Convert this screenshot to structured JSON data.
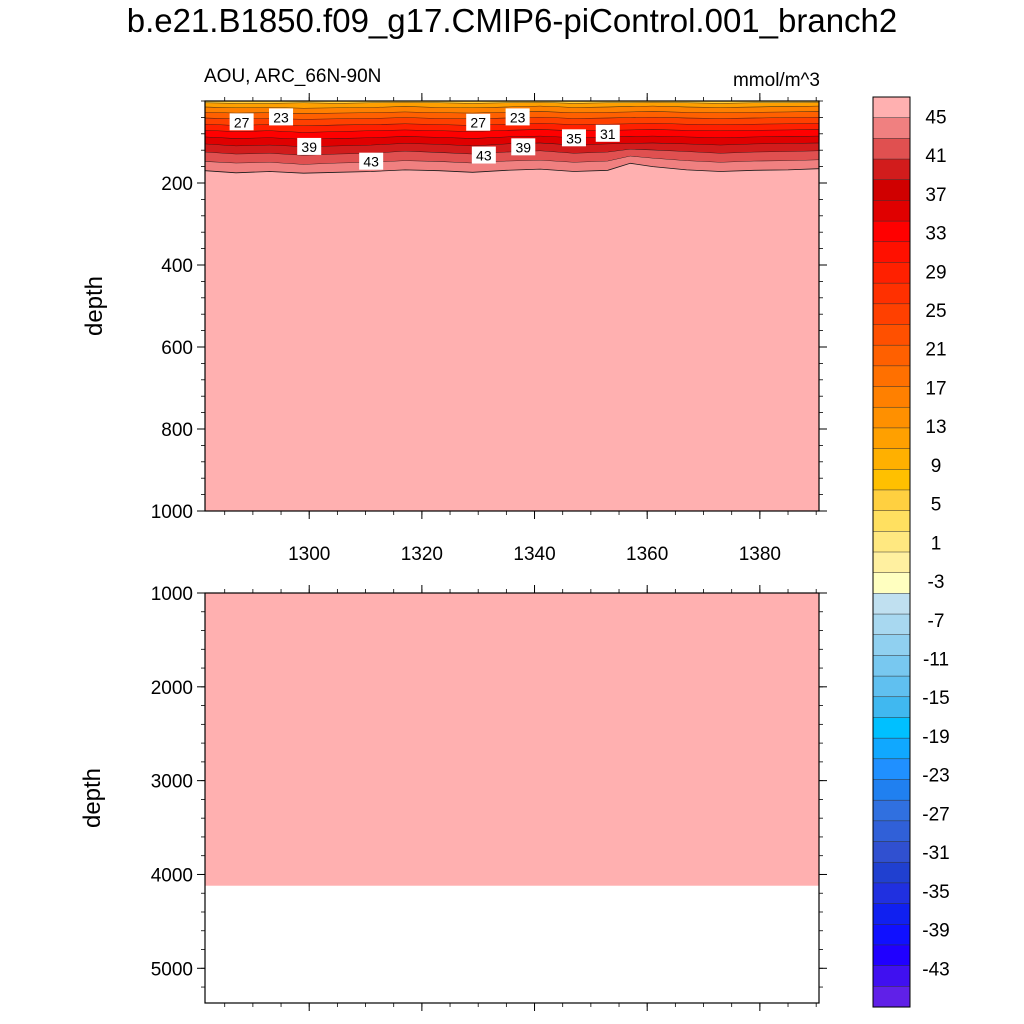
{
  "title": "b.e21.B1850.f09_g17.CMIP6-piControl.001_branch2",
  "left_string": "AOU, ARC_66N-90N",
  "right_string": "mmol/m^3",
  "colors": {
    "background_fill": "#ffb0b0",
    "contour_line": "#1a1a1a",
    "frame": "#000000"
  },
  "chart_data": [
    {
      "type": "heatmap",
      "subtype": "filled-contour",
      "ylabel": "depth",
      "xlim": [
        1281.5,
        1390.5
      ],
      "ylim": [
        1000,
        0
      ],
      "x_ticks": [
        1300,
        1320,
        1340,
        1360,
        1380
      ],
      "y_ticks": [
        200,
        400,
        600,
        800,
        1000
      ],
      "fill_below_contours": 47,
      "contour_bands": [
        {
          "level": 9,
          "top": [
            0,
            0,
            0,
            0,
            0,
            0,
            0,
            0,
            0,
            0,
            0,
            0,
            0,
            0,
            0,
            0,
            0,
            0,
            0,
            0
          ],
          "bottom": [
            5,
            6,
            6,
            5,
            6,
            5,
            4,
            5,
            6,
            5,
            4,
            6,
            5,
            5,
            4,
            5,
            6,
            5,
            5,
            4
          ],
          "color": "#ffd040"
        },
        {
          "level": 13,
          "top": [
            5,
            6,
            6,
            5,
            6,
            5,
            4,
            5,
            6,
            5,
            4,
            6,
            5,
            5,
            4,
            5,
            6,
            5,
            5,
            4
          ],
          "bottom": [
            15,
            17,
            16,
            18,
            17,
            16,
            14,
            16,
            17,
            15,
            13,
            16,
            15,
            14,
            13,
            15,
            16,
            15,
            14,
            13
          ],
          "color": "#ffa000"
        },
        {
          "level": 17,
          "top": [
            15,
            17,
            16,
            18,
            17,
            16,
            14,
            16,
            17,
            15,
            13,
            16,
            15,
            14,
            13,
            15,
            16,
            15,
            14,
            13
          ],
          "bottom": [
            28,
            30,
            29,
            31,
            30,
            29,
            27,
            29,
            30,
            28,
            26,
            29,
            28,
            27,
            26,
            28,
            29,
            28,
            27,
            26
          ],
          "color": "#ff8000"
        },
        {
          "level": 21,
          "top": [
            28,
            30,
            29,
            31,
            30,
            29,
            27,
            29,
            30,
            28,
            26,
            29,
            28,
            27,
            26,
            28,
            29,
            28,
            27,
            26
          ],
          "bottom": [
            42,
            44,
            43,
            45,
            44,
            43,
            41,
            43,
            44,
            42,
            40,
            43,
            42,
            41,
            40,
            42,
            43,
            42,
            41,
            40
          ],
          "color": "#ff6000"
        },
        {
          "level": 25,
          "top": [
            42,
            44,
            43,
            45,
            44,
            43,
            41,
            43,
            44,
            42,
            40,
            43,
            42,
            41,
            40,
            42,
            43,
            42,
            41,
            40
          ],
          "bottom": [
            57,
            60,
            58,
            61,
            59,
            58,
            56,
            58,
            60,
            57,
            55,
            58,
            57,
            56,
            55,
            57,
            58,
            57,
            56,
            55
          ],
          "color": "#ff4000"
        },
        {
          "level": 29,
          "top": [
            57,
            60,
            58,
            61,
            59,
            58,
            56,
            58,
            60,
            57,
            55,
            58,
            57,
            56,
            55,
            57,
            58,
            57,
            56,
            55
          ],
          "bottom": [
            72,
            75,
            73,
            77,
            75,
            73,
            71,
            73,
            75,
            72,
            70,
            73,
            72,
            71,
            70,
            72,
            73,
            72,
            71,
            70
          ],
          "color": "#ff2000"
        },
        {
          "level": 33,
          "top": [
            72,
            75,
            73,
            77,
            75,
            73,
            71,
            73,
            75,
            72,
            70,
            73,
            72,
            71,
            70,
            72,
            73,
            72,
            71,
            70
          ],
          "bottom": [
            88,
            92,
            90,
            94,
            92,
            90,
            87,
            89,
            92,
            88,
            86,
            90,
            88,
            87,
            86,
            88,
            90,
            88,
            87,
            86
          ],
          "color": "#ff0000"
        },
        {
          "level": 37,
          "top": [
            88,
            92,
            90,
            94,
            92,
            90,
            87,
            89,
            92,
            88,
            86,
            90,
            88,
            87,
            86,
            88,
            90,
            88,
            87,
            86
          ],
          "bottom": [
            105,
            110,
            108,
            112,
            110,
            108,
            104,
            106,
            110,
            105,
            103,
            108,
            105,
            104,
            103,
            105,
            108,
            105,
            104,
            103
          ],
          "color": "#e00000"
        },
        {
          "level": 41,
          "top": [
            105,
            110,
            108,
            112,
            110,
            108,
            104,
            106,
            110,
            105,
            103,
            108,
            105,
            104,
            103,
            105,
            108,
            105,
            104,
            103
          ],
          "bottom": [
            125,
            130,
            128,
            133,
            130,
            128,
            123,
            126,
            130,
            125,
            122,
            128,
            125,
            118,
            120,
            124,
            128,
            125,
            124,
            122
          ],
          "color": "#d21c1c"
        },
        {
          "level": 43,
          "top": [
            125,
            130,
            128,
            133,
            130,
            128,
            123,
            126,
            130,
            125,
            122,
            128,
            125,
            118,
            120,
            124,
            128,
            125,
            124,
            122
          ],
          "bottom": [
            148,
            152,
            150,
            155,
            152,
            150,
            146,
            148,
            152,
            147,
            145,
            150,
            147,
            135,
            140,
            146,
            150,
            147,
            146,
            144
          ],
          "color": "#e05050"
        },
        {
          "level": 45,
          "top": [
            148,
            152,
            150,
            155,
            152,
            150,
            146,
            148,
            152,
            147,
            145,
            150,
            147,
            135,
            140,
            146,
            150,
            147,
            146,
            144
          ],
          "bottom": [
            170,
            175,
            172,
            176,
            174,
            172,
            168,
            170,
            174,
            169,
            166,
            172,
            169,
            152,
            160,
            168,
            172,
            169,
            168,
            165
          ],
          "color": "#f08080"
        }
      ],
      "contour_x": [
        1281.5,
        1287,
        1293,
        1299,
        1305,
        1311,
        1317,
        1323,
        1329,
        1335,
        1341,
        1347,
        1353,
        1357,
        1361,
        1367,
        1373,
        1379,
        1385,
        1390.5
      ],
      "contour_labels": [
        {
          "text": "27",
          "x": 1288,
          "y": 52
        },
        {
          "text": "23",
          "x": 1295,
          "y": 40
        },
        {
          "text": "39",
          "x": 1300,
          "y": 112
        },
        {
          "text": "43",
          "x": 1311,
          "y": 148
        },
        {
          "text": "27",
          "x": 1330,
          "y": 53
        },
        {
          "text": "23",
          "x": 1337,
          "y": 40
        },
        {
          "text": "43",
          "x": 1331,
          "y": 133
        },
        {
          "text": "39",
          "x": 1338,
          "y": 113
        },
        {
          "text": "35",
          "x": 1347,
          "y": 91
        },
        {
          "text": "31",
          "x": 1353,
          "y": 80
        }
      ]
    },
    {
      "type": "heatmap",
      "subtype": "filled-contour",
      "ylabel": "depth",
      "xlim": [
        1281.5,
        1390.5
      ],
      "ylim": [
        5370,
        1000
      ],
      "y_ticks": [
        1000,
        2000,
        3000,
        4000,
        5000
      ],
      "fill_to_depth": 4120,
      "fill_color": "#ffb0b0"
    }
  ],
  "colorbar": {
    "labels": [
      "45",
      "41",
      "37",
      "33",
      "29",
      "25",
      "21",
      "17",
      "13",
      "9",
      "5",
      "1",
      "-3",
      "-7",
      "-11",
      "-15",
      "-19",
      "-23",
      "-27",
      "-31",
      "-35",
      "-39",
      "-43"
    ],
    "colors": [
      "#ffb0b0",
      "#f08080",
      "#e05050",
      "#d21c1c",
      "#d00000",
      "#e00000",
      "#ff0000",
      "#ff1000",
      "#ff2000",
      "#ff3000",
      "#ff4000",
      "#ff5000",
      "#ff6000",
      "#ff7000",
      "#ff8000",
      "#ff9000",
      "#ffa000",
      "#ffb000",
      "#ffc000",
      "#ffd040",
      "#ffe060",
      "#ffe880",
      "#fff0a0",
      "#ffffc0",
      "#c0e0f0",
      "#a8d8f0",
      "#90d0f0",
      "#78c8f0",
      "#60c0f0",
      "#40b8f0",
      "#00c0ff",
      "#10a8ff",
      "#2090ff",
      "#2080f0",
      "#3070e0",
      "#3060d8",
      "#3050d0",
      "#2040d0",
      "#2030e0",
      "#1020f0",
      "#1010ff",
      "#2000ff",
      "#4010f0",
      "#6020e8"
    ]
  }
}
